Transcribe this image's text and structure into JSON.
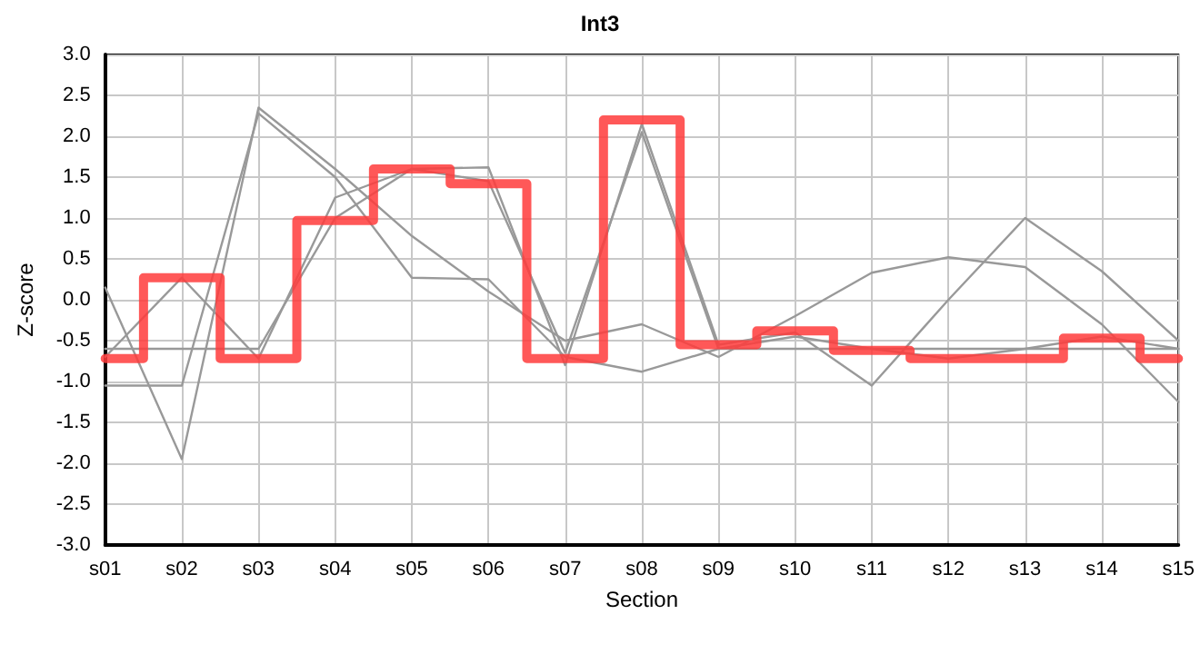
{
  "chart_data": {
    "type": "line",
    "title": "Int3",
    "xlabel": "Section",
    "ylabel": "Z-score",
    "categories": [
      "s01",
      "s02",
      "s03",
      "s04",
      "s05",
      "s06",
      "s07",
      "s08",
      "s09",
      "s10",
      "s11",
      "s12",
      "s13",
      "s14",
      "s15"
    ],
    "ylim": [
      -3,
      3
    ],
    "yticks": [
      {
        "value": -3,
        "label": "-3.0"
      },
      {
        "value": -2.5,
        "label": "-2.5"
      },
      {
        "value": -2,
        "label": "-2.0"
      },
      {
        "value": -1.5,
        "label": "-1.5"
      },
      {
        "value": -1,
        "label": "-1.0"
      },
      {
        "value": -0.5,
        "label": "-0.5"
      },
      {
        "value": 0,
        "label": "0.0"
      },
      {
        "value": 0.5,
        "label": "0.5"
      },
      {
        "value": 1,
        "label": "1.0"
      },
      {
        "value": 1.5,
        "label": "1.5"
      },
      {
        "value": 2,
        "label": "2.0"
      },
      {
        "value": 2.5,
        "label": "2.5"
      },
      {
        "value": 3,
        "label": "3.0"
      }
    ],
    "grid": true,
    "marker": "none",
    "line_style": "solid",
    "series": [
      {
        "color": "#999999",
        "values": [
          0.15,
          -1.95,
          2.35,
          1.6,
          0.78,
          0.1,
          -0.5,
          -0.3,
          -0.7,
          -0.2,
          0.33,
          0.52,
          0.4,
          -0.3,
          -1.25
        ]
      },
      {
        "color": "#999999",
        "values": [
          -0.7,
          0.27,
          -0.72,
          1.25,
          1.6,
          1.62,
          -0.8,
          2.15,
          -0.55,
          -0.4,
          -1.05,
          0,
          1.0,
          0.35,
          -0.5
        ]
      },
      {
        "color": "#999999",
        "values": [
          -0.6,
          -0.6,
          -0.6,
          1.0,
          1.6,
          1.45,
          -0.65,
          2.05,
          -0.6,
          -0.45,
          -0.6,
          -0.6,
          -0.6,
          -0.45,
          -0.6
        ]
      },
      {
        "color": "#999999",
        "values": [
          -1.05,
          -1.05,
          2.28,
          1.5,
          0.27,
          0.25,
          -0.7,
          -0.88,
          -0.6,
          -0.6,
          -0.6,
          -0.72,
          -0.6,
          -0.6,
          -0.6
        ]
      },
      {
        "type": "step",
        "color": "#ff3b3b",
        "values": [
          -0.72,
          0.27,
          -0.72,
          0.97,
          1.6,
          1.42,
          -0.72,
          2.2,
          -0.55,
          -0.38,
          -0.62,
          -0.72,
          -0.72,
          -0.47,
          -0.72
        ]
      }
    ]
  }
}
